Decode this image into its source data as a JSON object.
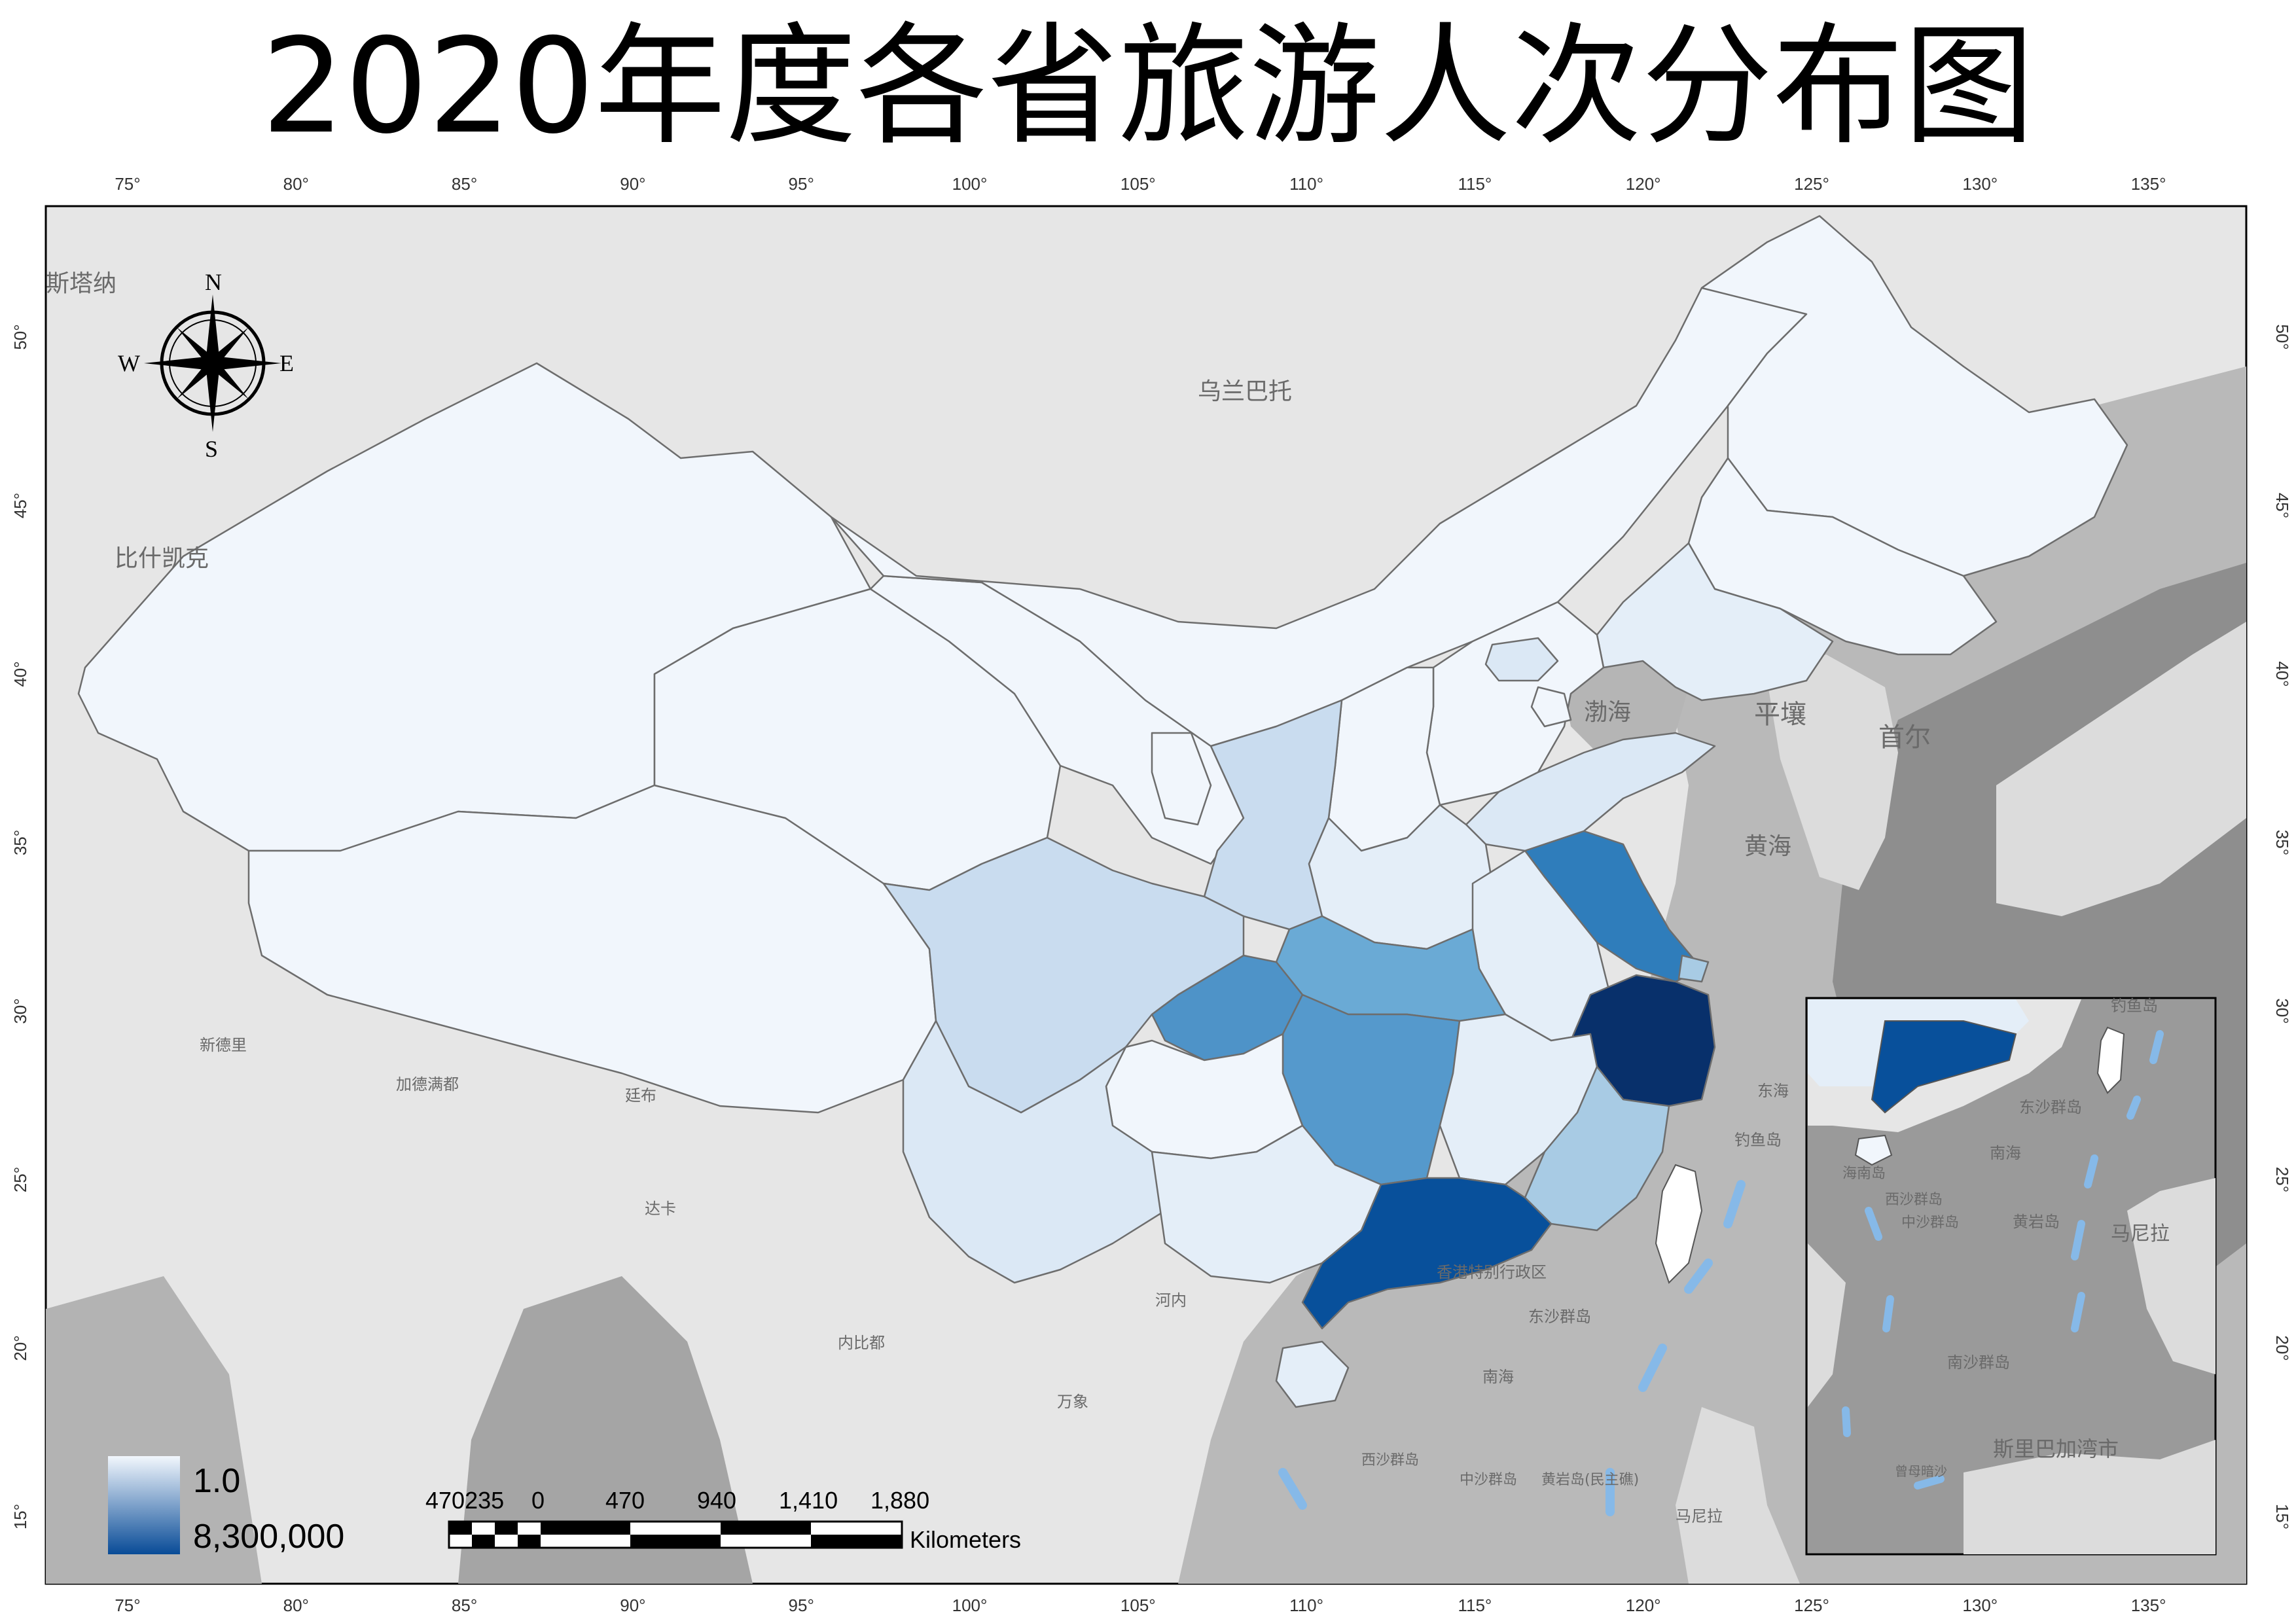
{
  "title": "2020年度各省旅游人次分布图",
  "axes": {
    "top_ticks": [
      "75°",
      "80°",
      "85°",
      "90°",
      "95°",
      "100°",
      "105°",
      "110°",
      "115°",
      "120°",
      "125°",
      "130°",
      "135°"
    ],
    "bottom_ticks": [
      "75°",
      "80°",
      "85°",
      "90°",
      "95°",
      "100°",
      "105°",
      "110°",
      "115°",
      "120°",
      "125°",
      "130°",
      "135°"
    ],
    "left_ticks": [
      "50°",
      "45°",
      "40°",
      "35°",
      "30°",
      "25°",
      "20°",
      "15°"
    ],
    "right_ticks": [
      "50°",
      "45°",
      "40°",
      "35°",
      "30°",
      "25°",
      "20°",
      "15°"
    ]
  },
  "compass": {
    "n": "N",
    "s": "S",
    "e": "E",
    "w": "W"
  },
  "place_labels": {
    "astana": "斯塔纳",
    "ulaanbaatar": "乌兰巴托",
    "bishkek": "比什凯克",
    "bohai": "渤海",
    "pyongyang": "平壤",
    "seoul": "首尔",
    "yellow_sea": "黄海",
    "east_sea": "东海",
    "diaoyu": "钓鱼岛",
    "hk": "香港特别行政区",
    "dongsha": "东沙群岛",
    "south_sea": "南海",
    "xisha": "西沙群岛",
    "zhongsha": "中沙群岛",
    "huangyan": "黄岩岛(民主礁)",
    "manila": "马尼拉",
    "new_delhi": "新德里",
    "kathmandu": "加德满都",
    "thimphu": "廷布",
    "dhaka": "达卡",
    "hanoi": "河内",
    "naypyidaw": "内比都",
    "vientiane": "万象",
    "inset_diaoyu": "钓鱼岛",
    "inset_dongsha": "东沙群岛",
    "inset_south_sea": "南海",
    "inset_xisha": "西沙群岛",
    "inset_zhongsha": "中沙群岛",
    "inset_huangyan": "黄岩岛",
    "inset_manila": "马尼拉",
    "inset_nansha": "南沙群岛",
    "inset_zengmu": "曾母暗沙",
    "inset_sri": "斯里巴加湾市",
    "inset_hainan": "海南岛"
  },
  "legend": {
    "min_label": "1.0",
    "max_label": "8,300,000",
    "low_color": "#f2f7fd",
    "high_color": "#084b97"
  },
  "scale_bar": {
    "labels": [
      "470235",
      "0",
      "470",
      "940",
      "1,410",
      "1,880"
    ],
    "unit": "Kilometers"
  },
  "colors": {
    "lowest": "#f1f6fc",
    "low": "#e4eef8",
    "low_mid": "#c9dcef",
    "mid": "#a8cbe4",
    "mid_high": "#6aaad5",
    "high": "#2f7dbb",
    "very_high": "#08509b",
    "highest": "#08306b"
  }
}
